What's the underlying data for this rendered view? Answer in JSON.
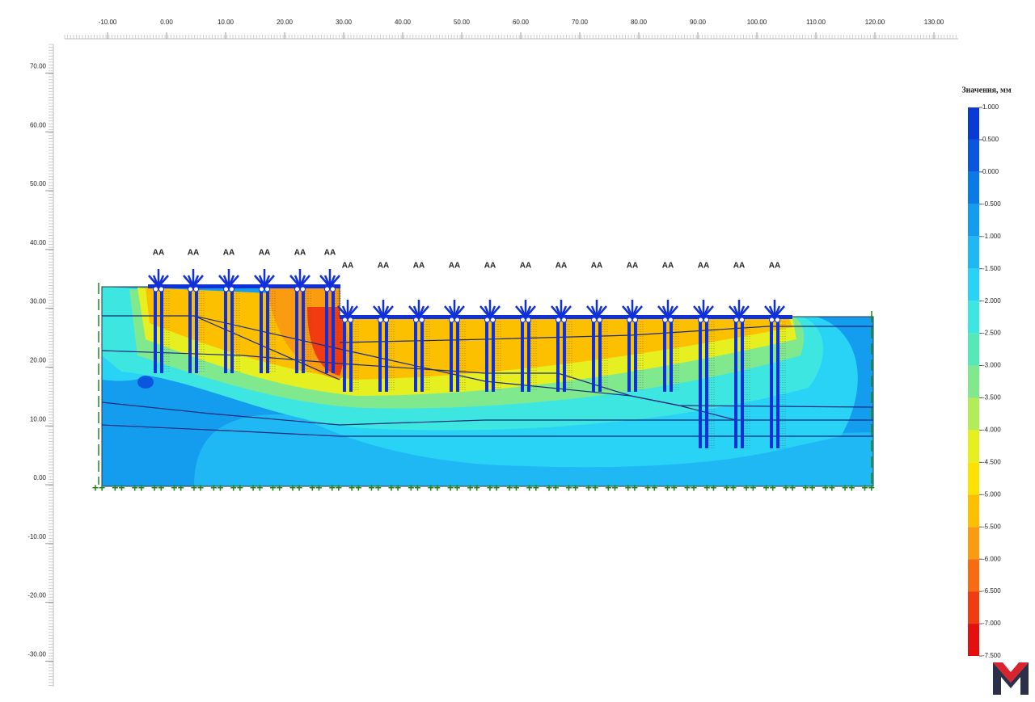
{
  "x_axis": {
    "ticks": [
      {
        "value": -10,
        "label": "-10.00"
      },
      {
        "value": 0,
        "label": "0.00"
      },
      {
        "value": 10,
        "label": "10.00"
      },
      {
        "value": 20,
        "label": "20.00"
      },
      {
        "value": 30,
        "label": "30.00"
      },
      {
        "value": 40,
        "label": "40.00"
      },
      {
        "value": 50,
        "label": "50.00"
      },
      {
        "value": 60,
        "label": "60.00"
      },
      {
        "value": 70,
        "label": "70.00"
      },
      {
        "value": 80,
        "label": "80.00"
      },
      {
        "value": 90,
        "label": "90.00"
      },
      {
        "value": 100,
        "label": "100.00"
      },
      {
        "value": 110,
        "label": "110.00"
      },
      {
        "value": 120,
        "label": "120.00"
      },
      {
        "value": 130,
        "label": "130.00"
      }
    ]
  },
  "y_axis": {
    "ticks": [
      {
        "value": 70,
        "label": "70.00"
      },
      {
        "value": 60,
        "label": "60.00"
      },
      {
        "value": 50,
        "label": "50.00"
      },
      {
        "value": 40,
        "label": "40.00"
      },
      {
        "value": 30,
        "label": "30.00"
      },
      {
        "value": 20,
        "label": "20.00"
      },
      {
        "value": 10,
        "label": "10.00"
      },
      {
        "value": 0,
        "label": "0.00"
      },
      {
        "value": -10,
        "label": "-10.00"
      },
      {
        "value": -20,
        "label": "-20.00"
      },
      {
        "value": -30,
        "label": "-30.00"
      }
    ]
  },
  "legend": {
    "title": "Значения, мм",
    "levels": [
      {
        "value": 1,
        "label": "1.000"
      },
      {
        "value": 0.5,
        "label": "0.500"
      },
      {
        "value": 0,
        "label": "0.000"
      },
      {
        "value": -0.5,
        "label": "-0.500"
      },
      {
        "value": -1,
        "label": "-1.000"
      },
      {
        "value": -1.5,
        "label": "-1.500"
      },
      {
        "value": -2,
        "label": "-2.000"
      },
      {
        "value": -2.5,
        "label": "-2.500"
      },
      {
        "value": -3,
        "label": "-3.000"
      },
      {
        "value": -3.5,
        "label": "-3.500"
      },
      {
        "value": -4,
        "label": "-4.000"
      },
      {
        "value": -4.5,
        "label": "-4.500"
      },
      {
        "value": -5,
        "label": "-5.000"
      },
      {
        "value": -5.5,
        "label": "-5.500"
      },
      {
        "value": -6,
        "label": "-6.000"
      },
      {
        "value": -6.5,
        "label": "-6.500"
      },
      {
        "value": -7,
        "label": "-7.000"
      },
      {
        "value": -7.5,
        "label": "-7.500"
      }
    ],
    "colors": [
      "#0a3ad4",
      "#0a56de",
      "#0a7be6",
      "#149cee",
      "#1fb8f4",
      "#28d3f6",
      "#3ee6e2",
      "#56e9b8",
      "#80e98e",
      "#b2ec58",
      "#e6ef20",
      "#fbe200",
      "#fcc000",
      "#fb9c10",
      "#f76c10",
      "#f03c10",
      "#e41010"
    ]
  },
  "anchors": [
    "AA",
    "AA",
    "AA",
    "AA",
    "AA",
    "AA",
    "AA",
    "AA",
    "AA",
    "AA",
    "AA",
    "AA",
    "AA",
    "AA",
    "AA",
    "AA",
    "AA",
    "AA",
    "AA"
  ]
}
